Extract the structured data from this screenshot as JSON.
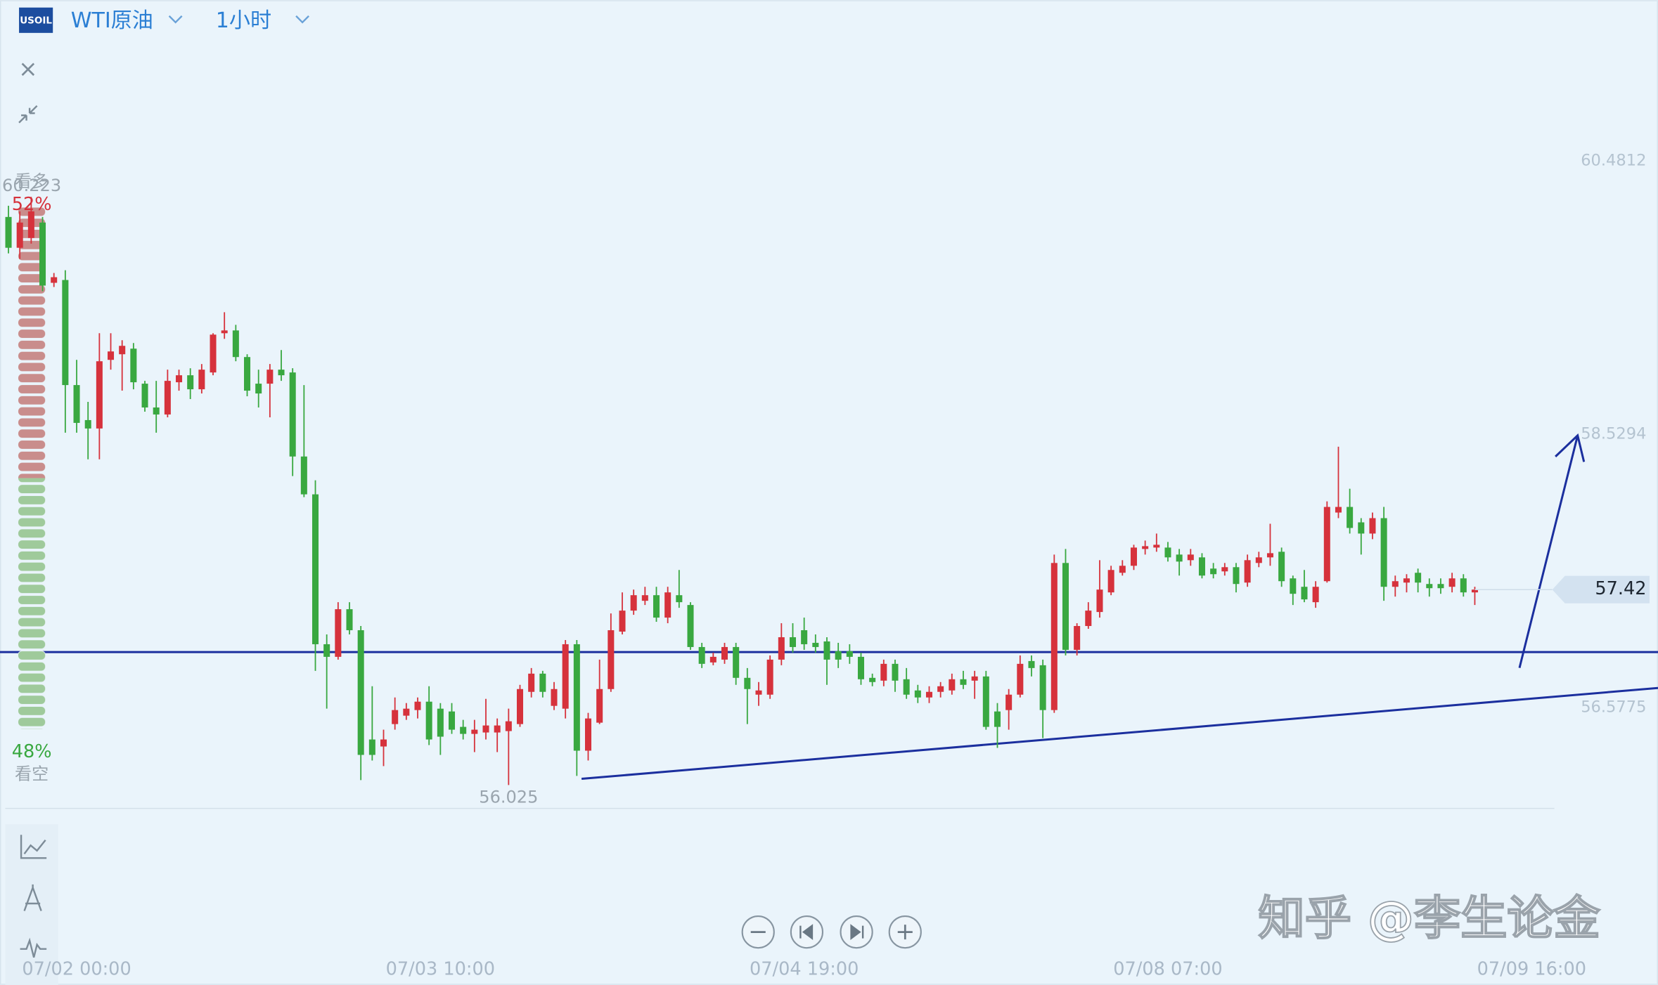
{
  "header": {
    "symbol_badge": "USOIL",
    "instrument": "WTI原油",
    "interval": "1小时"
  },
  "sentiment": {
    "labels": [
      "看多",
      "看空"
    ],
    "values": [
      52,
      48
    ],
    "value_labels": [
      "52%",
      "48%"
    ]
  },
  "watermark": "知乎 @李生论金",
  "chart_data": {
    "type": "candlestick",
    "categories": [
      null,
      null,
      null,
      null,
      null,
      null,
      "07/02 00:00",
      null,
      null,
      null,
      null,
      null,
      null,
      null,
      null,
      null,
      null,
      null,
      null,
      null,
      null,
      null,
      null,
      null,
      null,
      null,
      null,
      null,
      null,
      null,
      null,
      null,
      null,
      null,
      null,
      null,
      null,
      null,
      "07/03 10:00",
      null,
      null,
      null,
      null,
      null,
      null,
      null,
      null,
      null,
      null,
      null,
      null,
      null,
      null,
      null,
      null,
      null,
      null,
      null,
      null,
      null,
      null,
      null,
      null,
      null,
      null,
      null,
      null,
      null,
      null,
      null,
      "07/04 19:00",
      null,
      null,
      null,
      null,
      null,
      null,
      null,
      null,
      null,
      null,
      null,
      null,
      null,
      null,
      null,
      null,
      null,
      null,
      null,
      null,
      null,
      null,
      null,
      null,
      null,
      null,
      null,
      null,
      null,
      null,
      null,
      "07/08 07:00",
      null,
      null,
      null,
      null,
      null,
      null,
      null,
      null,
      null,
      null,
      null,
      null,
      null,
      null,
      null,
      null,
      null,
      null,
      null,
      null,
      null,
      null,
      null,
      null,
      null,
      null,
      null,
      null,
      null,
      null,
      null,
      "07/09 16:00"
    ],
    "open": [
      60.08,
      59.86,
      59.93,
      60.04,
      59.61,
      59.63,
      58.88,
      58.63,
      58.57,
      59.06,
      59.1,
      59.14,
      58.89,
      58.72,
      58.67,
      58.9,
      58.95,
      58.85,
      58.97,
      59.25,
      59.27,
      59.08,
      58.89,
      58.89,
      58.99,
      58.97,
      58.37,
      58.1,
      57.03,
      56.94,
      57.28,
      57.13,
      56.35,
      56.3,
      56.46,
      56.52,
      56.56,
      56.62,
      56.57,
      56.55,
      56.44,
      56.39,
      56.4,
      56.4,
      56.41,
      56.46,
      56.69,
      56.82,
      56.59,
      56.57,
      57.03,
      56.27,
      56.47,
      56.71,
      57.12,
      57.27,
      57.34,
      57.38,
      57.22,
      57.38,
      57.31,
      57.01,
      56.9,
      56.92,
      57.01,
      56.79,
      56.67,
      56.67,
      56.92,
      57.08,
      57.13,
      57.04,
      57.05,
      56.98,
      56.98,
      56.94,
      56.79,
      56.77,
      56.89,
      56.78,
      56.7,
      56.65,
      56.69,
      56.7,
      56.78,
      56.77,
      56.8,
      56.55,
      56.56,
      56.67,
      56.91,
      56.88,
      56.56,
      57.61,
      56.99,
      57.16,
      57.26,
      57.4,
      57.54,
      57.59,
      57.71,
      57.72,
      57.72,
      57.67,
      57.63,
      57.65,
      57.57,
      57.55,
      57.58,
      57.47,
      57.61,
      57.65,
      57.69,
      57.5,
      57.44,
      57.33,
      57.48,
      57.97,
      58.01,
      57.9,
      57.82,
      57.93,
      57.44,
      57.47,
      57.54,
      57.46,
      57.46,
      57.44,
      57.5,
      57.4,
      null,
      null,
      null,
      null,
      null
    ],
    "high": [
      60.16,
      60.12,
      60.223,
      60.08,
      59.68,
      59.7,
      59.06,
      58.76,
      59.25,
      59.25,
      59.2,
      59.18,
      58.91,
      58.91,
      58.99,
      58.99,
      59.0,
      59.03,
      59.25,
      59.4,
      59.31,
      59.1,
      58.99,
      59.03,
      59.13,
      59.0,
      58.88,
      58.2,
      57.1,
      57.33,
      57.33,
      57.16,
      56.73,
      56.42,
      56.65,
      56.61,
      56.65,
      56.73,
      56.61,
      56.61,
      56.49,
      56.49,
      56.64,
      56.5,
      56.57,
      56.74,
      56.86,
      56.84,
      56.76,
      57.06,
      57.06,
      56.54,
      56.92,
      57.25,
      57.4,
      57.42,
      57.44,
      57.44,
      57.44,
      57.56,
      57.33,
      57.04,
      56.97,
      57.04,
      57.04,
      56.86,
      56.76,
      56.95,
      57.18,
      57.18,
      57.22,
      57.1,
      57.08,
      57.04,
      57.03,
      56.97,
      56.82,
      56.92,
      56.92,
      56.86,
      56.74,
      56.73,
      56.76,
      56.82,
      56.84,
      56.84,
      56.84,
      56.61,
      56.71,
      56.95,
      56.95,
      56.92,
      57.67,
      57.71,
      57.18,
      57.33,
      57.63,
      57.59,
      57.63,
      57.74,
      57.77,
      57.82,
      57.76,
      57.71,
      57.71,
      57.68,
      57.61,
      57.61,
      57.61,
      57.67,
      57.69,
      57.89,
      57.72,
      57.52,
      57.56,
      57.48,
      58.05,
      58.44,
      58.14,
      57.93,
      57.97,
      58.01,
      57.52,
      57.53,
      57.57,
      57.5,
      57.5,
      57.54,
      57.53,
      57.44,
      null,
      null,
      null,
      null,
      null
    ],
    "low": [
      59.82,
      59.78,
      59.89,
      59.55,
      59.58,
      58.54,
      58.54,
      58.35,
      58.35,
      58.99,
      58.84,
      58.85,
      58.69,
      58.54,
      58.65,
      58.84,
      58.78,
      58.82,
      58.95,
      59.21,
      59.05,
      58.8,
      58.72,
      58.65,
      58.91,
      58.23,
      58.08,
      56.84,
      56.57,
      56.92,
      57.1,
      56.06,
      56.2,
      56.16,
      56.42,
      56.49,
      56.5,
      56.31,
      56.24,
      56.39,
      56.35,
      56.26,
      56.35,
      56.26,
      56.025,
      56.44,
      56.65,
      56.65,
      56.56,
      56.5,
      56.09,
      56.2,
      56.46,
      56.69,
      57.1,
      57.24,
      57.31,
      57.19,
      57.18,
      57.29,
      56.99,
      56.86,
      56.88,
      56.89,
      56.74,
      56.46,
      56.59,
      56.64,
      56.88,
      56.97,
      56.99,
      56.97,
      56.74,
      56.86,
      56.89,
      56.74,
      56.73,
      56.73,
      56.69,
      56.64,
      56.61,
      56.61,
      56.65,
      56.67,
      56.71,
      56.64,
      56.42,
      56.29,
      56.42,
      56.65,
      56.8,
      56.36,
      56.54,
      56.95,
      56.95,
      57.14,
      57.22,
      57.38,
      57.52,
      57.56,
      57.67,
      57.69,
      57.62,
      57.52,
      57.59,
      57.5,
      57.5,
      57.52,
      57.4,
      57.44,
      57.58,
      57.59,
      57.44,
      57.31,
      57.33,
      57.29,
      57.47,
      57.93,
      57.82,
      57.67,
      57.78,
      57.34,
      57.37,
      57.4,
      57.4,
      57.37,
      57.39,
      57.4,
      57.37,
      57.31,
      null,
      null,
      null,
      null,
      null
    ],
    "close": [
      59.86,
      60.04,
      60.12,
      59.59,
      59.65,
      58.88,
      58.61,
      58.57,
      59.05,
      59.12,
      59.16,
      58.9,
      58.72,
      58.67,
      58.91,
      58.95,
      58.85,
      58.99,
      59.24,
      59.27,
      59.08,
      58.84,
      58.82,
      58.99,
      58.95,
      58.37,
      58.1,
      57.03,
      56.94,
      57.28,
      57.13,
      56.24,
      56.24,
      56.35,
      56.56,
      56.57,
      56.62,
      56.35,
      56.37,
      56.42,
      56.39,
      56.42,
      56.45,
      56.45,
      56.48,
      56.71,
      56.82,
      56.69,
      56.71,
      57.03,
      56.27,
      56.5,
      56.71,
      57.13,
      57.27,
      57.38,
      57.38,
      57.22,
      57.4,
      57.33,
      57.01,
      56.89,
      56.94,
      57.01,
      56.79,
      56.71,
      56.7,
      56.92,
      57.08,
      57.01,
      57.03,
      57.01,
      56.92,
      56.92,
      56.94,
      56.78,
      56.76,
      56.89,
      56.77,
      56.67,
      56.65,
      56.69,
      56.73,
      56.78,
      56.74,
      56.8,
      56.44,
      56.44,
      56.67,
      56.89,
      56.86,
      56.56,
      57.61,
      56.99,
      57.16,
      57.27,
      57.42,
      57.56,
      57.59,
      57.72,
      57.73,
      57.74,
      57.65,
      57.62,
      57.67,
      57.52,
      57.53,
      57.58,
      57.46,
      57.63,
      57.65,
      57.68,
      57.48,
      57.39,
      57.35,
      57.44,
      58.01,
      58.01,
      57.86,
      57.82,
      57.93,
      57.44,
      57.48,
      57.5,
      57.47,
      57.43,
      57.43,
      57.5,
      57.4,
      57.42,
      null,
      null,
      null,
      null,
      null
    ],
    "up_color": "#d6323c",
    "down_color": "#39a840",
    "ylim": [
      55.858,
      61.326
    ],
    "yticks": [
      56.5775,
      58.5294,
      60.4812
    ]
  }
}
